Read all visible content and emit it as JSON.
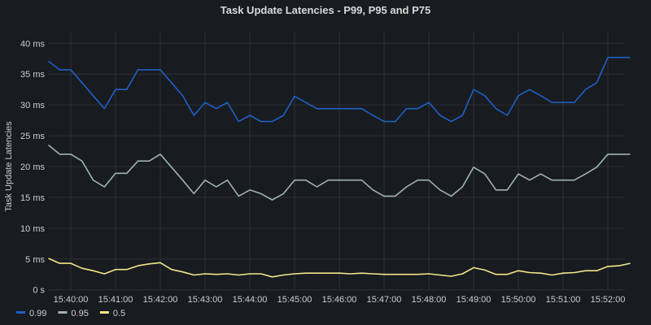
{
  "chart_data": {
    "type": "line",
    "title": "Task Update Latencies - P99, P95 and P75",
    "ylabel": "Task Update Latencies",
    "xlabel": "",
    "unit": "ms",
    "ylim": [
      0,
      40
    ],
    "yticks": [
      0,
      5,
      10,
      15,
      20,
      25,
      30,
      35,
      40
    ],
    "ytick_labels": [
      "0 s",
      "5 ms",
      "10 ms",
      "15 ms",
      "20 ms",
      "25 ms",
      "30 ms",
      "35 ms",
      "40 ms"
    ],
    "xlim": [
      "15:39:30",
      "15:52:30"
    ],
    "xticks": [
      "15:40:00",
      "15:41:00",
      "15:42:00",
      "15:43:00",
      "15:44:00",
      "15:45:00",
      "15:46:00",
      "15:47:00",
      "15:48:00",
      "15:49:00",
      "15:50:00",
      "15:51:00",
      "15:52:00"
    ],
    "grid": true,
    "legend_position": "bottom-left",
    "x_start": "15:39:30",
    "x_step_seconds": 15,
    "series": [
      {
        "name": "0.99",
        "color": "#1f60c4",
        "values": [
          37.1,
          35.7,
          35.7,
          33.6,
          31.5,
          29.4,
          32.5,
          32.5,
          35.7,
          35.7,
          35.7,
          33.6,
          31.5,
          28.3,
          30.4,
          29.4,
          30.4,
          27.3,
          28.3,
          27.3,
          27.3,
          28.3,
          31.4,
          30.4,
          29.4,
          29.4,
          29.4,
          29.4,
          29.4,
          28.3,
          27.3,
          27.3,
          29.4,
          29.4,
          30.4,
          28.3,
          27.3,
          28.3,
          32.5,
          31.5,
          29.4,
          28.3,
          31.5,
          32.5,
          31.5,
          30.4,
          30.4,
          30.4,
          32.5,
          33.6,
          37.7,
          37.7,
          37.7
        ]
      },
      {
        "name": "0.95",
        "color": "#9fb2b6",
        "values": [
          23.5,
          22.0,
          22.0,
          20.9,
          17.8,
          16.7,
          18.9,
          18.9,
          20.9,
          20.9,
          22.0,
          19.9,
          17.8,
          15.6,
          17.8,
          16.7,
          17.8,
          15.2,
          16.2,
          15.6,
          14.6,
          15.6,
          17.8,
          17.8,
          16.7,
          17.8,
          17.8,
          17.8,
          17.8,
          16.2,
          15.2,
          15.2,
          16.7,
          17.8,
          17.8,
          16.2,
          15.2,
          16.7,
          19.9,
          18.8,
          16.2,
          16.2,
          18.8,
          17.8,
          18.8,
          17.8,
          17.8,
          17.8,
          18.8,
          19.9,
          22.0,
          22.0,
          22.0
        ]
      },
      {
        "name": "0.5",
        "color": "#f2e68c",
        "values": [
          5.1,
          4.3,
          4.3,
          3.5,
          3.1,
          2.6,
          3.3,
          3.3,
          3.9,
          4.2,
          4.4,
          3.3,
          2.9,
          2.4,
          2.6,
          2.5,
          2.6,
          2.4,
          2.6,
          2.6,
          2.1,
          2.4,
          2.6,
          2.7,
          2.7,
          2.7,
          2.7,
          2.6,
          2.7,
          2.6,
          2.5,
          2.5,
          2.5,
          2.5,
          2.6,
          2.4,
          2.2,
          2.6,
          3.6,
          3.2,
          2.5,
          2.5,
          3.1,
          2.8,
          2.7,
          2.4,
          2.7,
          2.8,
          3.1,
          3.1,
          3.8,
          3.9,
          4.3
        ]
      }
    ]
  },
  "colors": {
    "background": "#181b1f",
    "grid": "#2c2f35"
  }
}
